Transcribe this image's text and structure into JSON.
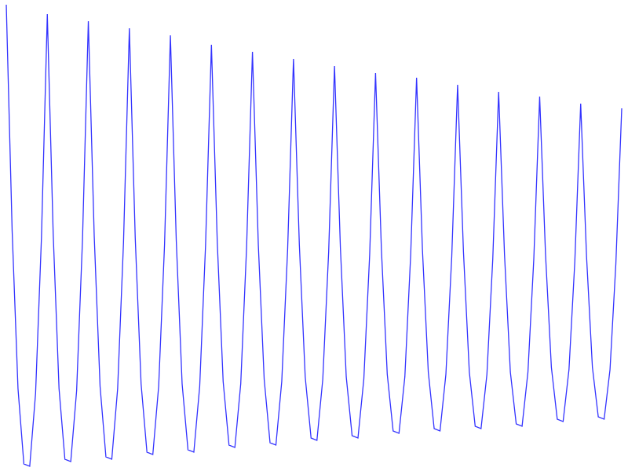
{
  "chart_data": {
    "type": "line",
    "title": "",
    "xlabel": "",
    "ylabel": "",
    "axes_visible": false,
    "grid": false,
    "legend": "none",
    "ylim": [
      -1,
      1
    ],
    "series": [
      {
        "color": "#3333ff",
        "values": [
          0.98,
          0.02,
          -0.65,
          -0.97,
          -0.98,
          -0.67,
          -0.01,
          0.94,
          0.01,
          -0.65,
          -0.95,
          -0.96,
          -0.66,
          -0.02,
          0.91,
          0.0,
          -0.64,
          -0.94,
          -0.95,
          -0.65,
          -0.03,
          0.88,
          -0.01,
          -0.63,
          -0.92,
          -0.93,
          -0.64,
          -0.04,
          0.85,
          -0.02,
          -0.63,
          -0.91,
          -0.92,
          -0.64,
          -0.04,
          0.81,
          -0.03,
          -0.62,
          -0.89,
          -0.9,
          -0.63,
          -0.05,
          0.78,
          -0.04,
          -0.61,
          -0.88,
          -0.89,
          -0.62,
          -0.06,
          0.75,
          -0.04,
          -0.6,
          -0.86,
          -0.87,
          -0.61,
          -0.07,
          0.72,
          -0.05,
          -0.6,
          -0.85,
          -0.86,
          -0.61,
          -0.08,
          0.69,
          -0.06,
          -0.59,
          -0.83,
          -0.84,
          -0.6,
          -0.08,
          0.67,
          -0.06,
          -0.58,
          -0.82,
          -0.83,
          -0.59,
          -0.09,
          0.64,
          -0.07,
          -0.58,
          -0.81,
          -0.82,
          -0.59,
          -0.1,
          0.61,
          -0.08,
          -0.58,
          -0.8,
          -0.81,
          -0.58,
          -0.1,
          0.59,
          -0.08,
          -0.56,
          -0.78,
          -0.79,
          -0.57,
          -0.11,
          0.56,
          -0.09,
          -0.56,
          -0.77,
          -0.78,
          -0.57,
          -0.12,
          0.54
        ]
      }
    ]
  }
}
